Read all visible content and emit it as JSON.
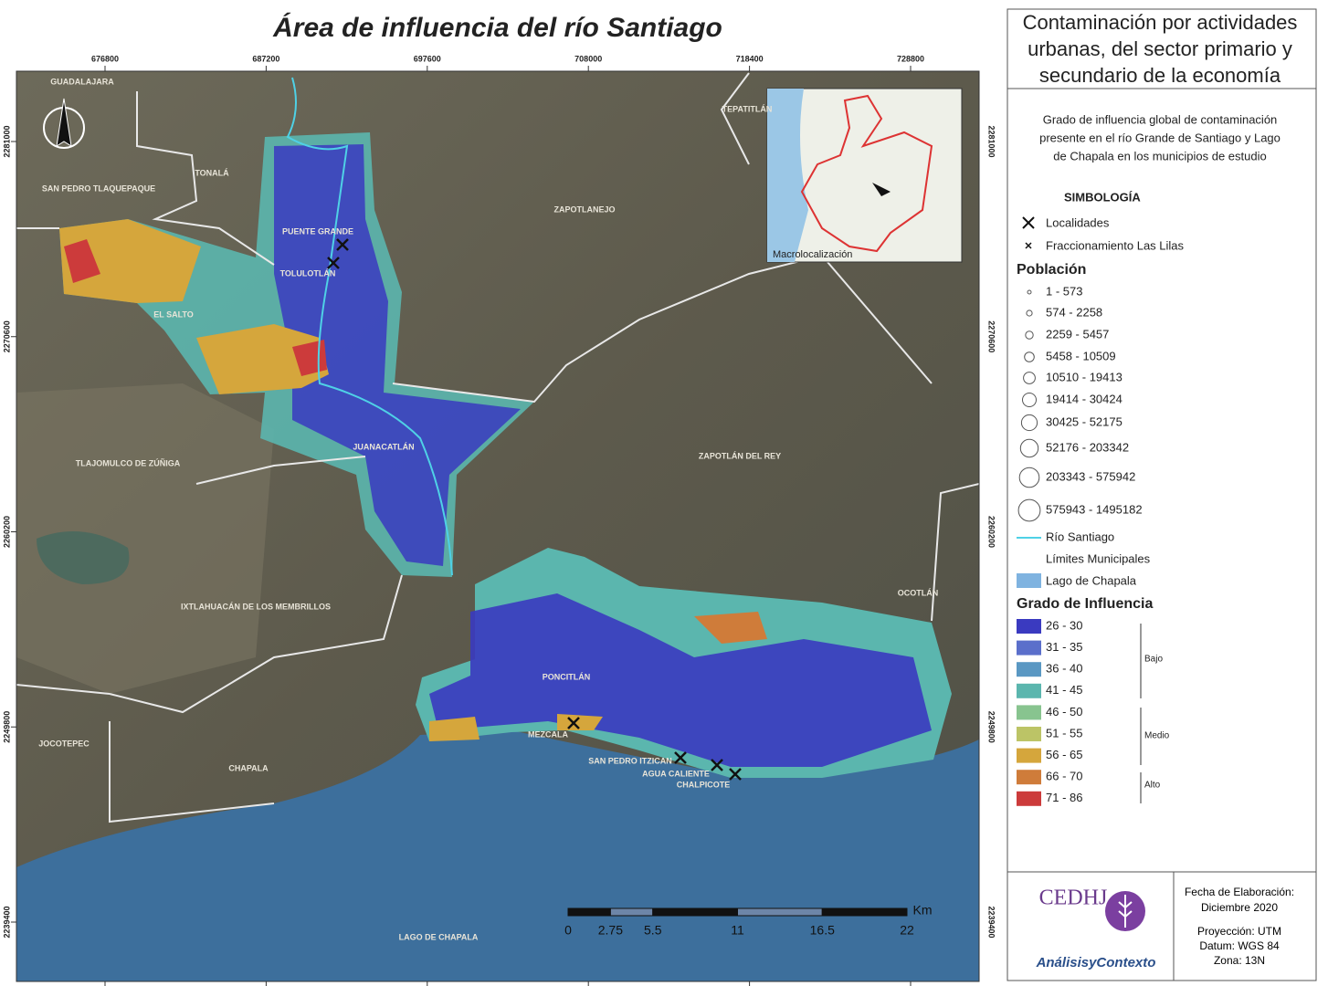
{
  "map": {
    "title": "Área de influencia del río Santiago",
    "x_ticks": [
      676800,
      687200,
      697600,
      708000,
      718400,
      728800
    ],
    "y_ticks": [
      2281000,
      2270600,
      2260200,
      2249800,
      2239400
    ],
    "places": [
      "GUADALAJARA",
      "TONALÁ",
      "SAN PEDRO TLAQUEPAQUE",
      "PUENTE GRANDE",
      "TOLULOTLÁN",
      "EL SALTO",
      "JUANACATLÁN",
      "TLAJOMULCO DE ZÚÑIGA",
      "IXTLAHUACÁN DE LOS MEMBRILLOS",
      "ZAPOTLANEJO",
      "ZAPOTLÁN DEL REY",
      "TEPATITLÁN",
      "OCOTLÁN",
      "PONCITLÁN",
      "MEZCALA",
      "SAN PEDRO ITZICAN",
      "AGUA CALIENTE",
      "CHALPICOTE",
      "JOCOTEPEC",
      "CHAPALA",
      "LAGO DE CHAPALA"
    ],
    "inset_label": "Macrolocalización",
    "scale": {
      "unit": "Km",
      "ticks": [
        0,
        2.75,
        5.5,
        11,
        16.5,
        22
      ]
    }
  },
  "legend": {
    "heading_lines": [
      "Contaminación por actividades",
      "urbanas, del sector primario y",
      "secundario de la economía"
    ],
    "description_lines": [
      "Grado de influencia global de contaminación",
      "presente en el río Grande de Santiago y Lago",
      "de Chapala en los municipios de estudio"
    ],
    "symbology": "SIMBOLOGÍA",
    "localities": "Localidades",
    "subdivision": "Fraccionamiento Las Lilas",
    "population_title": "Población",
    "population": [
      "1 - 573",
      "574 - 2258",
      "2259 - 5457",
      "5458 - 10509",
      "10510 - 19413",
      "19414 - 30424",
      "30425 - 52175",
      "52176 - 203342",
      "203343 - 575942",
      "575943 - 1495182"
    ],
    "river": "Río Santiago",
    "limits": "Límites Municipales",
    "lake": "Lago de Chapala",
    "influence_title": "Grado de Influencia",
    "influence": [
      {
        "label": "26 - 30",
        "color": "#3a3ac0"
      },
      {
        "label": "31 - 35",
        "color": "#5b6fcb"
      },
      {
        "label": "36 - 40",
        "color": "#5a98c3"
      },
      {
        "label": "41 - 45",
        "color": "#5bb6ae"
      },
      {
        "label": "46 - 50",
        "color": "#88c48f"
      },
      {
        "label": "51 - 55",
        "color": "#bcc466"
      },
      {
        "label": "56 - 65",
        "color": "#d5a63c"
      },
      {
        "label": "66 - 70",
        "color": "#cf7c3a"
      },
      {
        "label": "71 - 86",
        "color": "#cc3b3b"
      }
    ],
    "groups": [
      "Bajo",
      "Medio",
      "Alto"
    ]
  },
  "footer": {
    "logo": "CEDHJ",
    "logo_sub": "AnálisisyContexto",
    "date_label": "Fecha de Elaboración:",
    "date": "Diciembre 2020",
    "projection": "Proyección: UTM",
    "datum": "Datum: WGS 84",
    "zone": "Zona: 13N"
  }
}
